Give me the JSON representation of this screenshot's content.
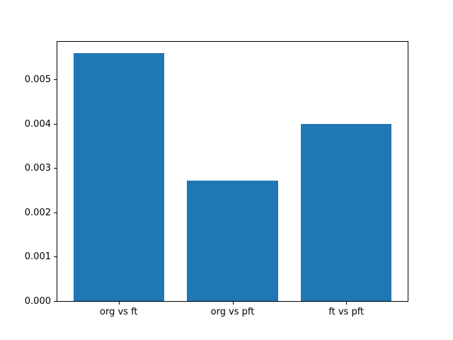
{
  "chart_data": {
    "type": "bar",
    "title": "",
    "xlabel": "",
    "ylabel": "",
    "categories": [
      "org vs ft",
      "org vs pft",
      "ft vs pft"
    ],
    "values": [
      0.0056,
      0.00271,
      0.004
    ],
    "ylim": [
      0,
      0.00585
    ],
    "xlim": [
      -0.54,
      2.54
    ],
    "bar_width": 0.8,
    "yticks": [
      0.0,
      0.001,
      0.002,
      0.003,
      0.004,
      0.005
    ],
    "ytick_labels": [
      "0.000",
      "0.001",
      "0.002",
      "0.003",
      "0.004",
      "0.005"
    ],
    "bar_color": "#1f77b4",
    "axis_color": "#000000",
    "background_color": "#ffffff",
    "grid": false,
    "legend": null
  }
}
